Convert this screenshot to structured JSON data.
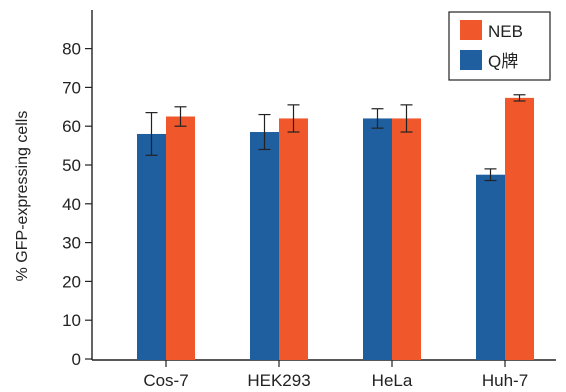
{
  "chart_data": {
    "type": "bar",
    "ylabel": "% GFP-expressing cells",
    "xlabel": "",
    "title": "",
    "ylim": [
      0,
      90
    ],
    "yticks": [
      0,
      10,
      20,
      30,
      40,
      50,
      60,
      70,
      80
    ],
    "categories": [
      "Cos-7",
      "HEK293",
      "HeLa",
      "Huh-7"
    ],
    "series": [
      {
        "name": "Q牌",
        "color": "#1f5fa0",
        "values": [
          58,
          58.5,
          62,
          47.5
        ],
        "errors": [
          5.5,
          4.5,
          2.5,
          1.5
        ]
      },
      {
        "name": "NEB",
        "color": "#f0572a",
        "values": [
          62.5,
          62,
          62,
          67.3
        ],
        "errors": [
          2.5,
          3.5,
          3.5,
          0.8
        ]
      }
    ],
    "legend_order": [
      "NEB",
      "Q牌"
    ],
    "legend_position": "top-right",
    "grid": false
  }
}
